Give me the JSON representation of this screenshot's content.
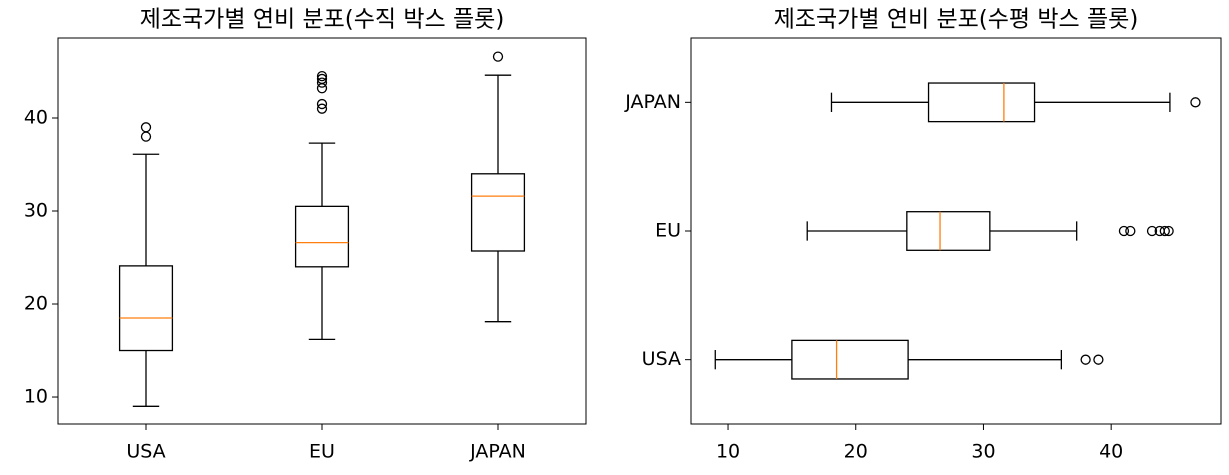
{
  "chart_data": [
    {
      "type": "box",
      "orientation": "vertical",
      "title": "제조국가별 연비 분포(수직 박스 플롯)",
      "categories": [
        "USA",
        "EU",
        "JAPAN"
      ],
      "whisker_low": [
        9.0,
        16.2,
        18.1
      ],
      "q1": [
        15.0,
        24.0,
        25.7
      ],
      "median": [
        18.5,
        26.6,
        31.6
      ],
      "q3": [
        24.1,
        30.5,
        34.0
      ],
      "whisker_high": [
        36.1,
        37.3,
        44.6
      ],
      "outliers": [
        [
          38.0,
          39.0
        ],
        [
          41.0,
          41.5,
          43.2,
          43.8,
          44.2,
          44.5
        ],
        [
          46.6
        ]
      ],
      "color": "#000000",
      "median_color": "#ff7f0e",
      "ylim": [
        7.1,
        48.6
      ],
      "yticks": [
        10,
        20,
        30,
        40
      ]
    },
    {
      "type": "box",
      "orientation": "horizontal",
      "title": "제조국가별 연비 분포(수평 박스 플롯)",
      "categories": [
        "USA",
        "EU",
        "JAPAN"
      ],
      "whisker_low": [
        9.0,
        16.2,
        18.1
      ],
      "q1": [
        15.0,
        24.0,
        25.7
      ],
      "median": [
        18.5,
        26.6,
        31.6
      ],
      "q3": [
        24.1,
        30.5,
        34.0
      ],
      "whisker_high": [
        36.1,
        37.3,
        44.6
      ],
      "outliers": [
        [
          38.0,
          39.0
        ],
        [
          41.0,
          41.5,
          43.2,
          43.8,
          44.2,
          44.5
        ],
        [
          46.6
        ]
      ],
      "color": "#000000",
      "median_color": "#ff7f0e",
      "xlim": [
        7.1,
        48.6
      ],
      "xticks": [
        10,
        20,
        30,
        40
      ]
    }
  ]
}
